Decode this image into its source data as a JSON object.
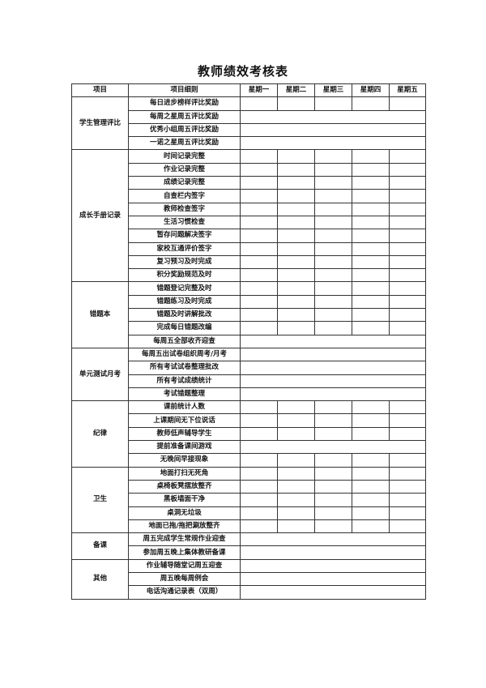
{
  "title": "教师绩效考核表",
  "headers": [
    "项目",
    "项目细则",
    "星期一",
    "星期二",
    "星期三",
    "星期四",
    "星期五"
  ],
  "sections": [
    {
      "name": "学生管理评比",
      "items": [
        {
          "text": "每日进步榜样评比奖励",
          "daily": true
        },
        {
          "text": "每周之星周五评比奖励",
          "daily": false
        },
        {
          "text": "优秀小组周五评比奖励",
          "daily": false
        },
        {
          "text": "一诺之星周五评比奖励",
          "daily": false
        }
      ]
    },
    {
      "name": "成长手册记录",
      "items": [
        {
          "text": "时间记录完整",
          "daily": true
        },
        {
          "text": "作业记录完整",
          "daily": true
        },
        {
          "text": "成绩记录完整",
          "daily": true
        },
        {
          "text": "自查栏内签字",
          "daily": true
        },
        {
          "text": "教师检查签字",
          "daily": true
        },
        {
          "text": "生活习惯检查",
          "daily": true
        },
        {
          "text": "暂存问题解决签字",
          "daily": true
        },
        {
          "text": "家校互通评价签字",
          "daily": true
        },
        {
          "text": "复习预习及时完成",
          "daily": true
        },
        {
          "text": "积分奖励规范及时",
          "daily": true
        }
      ]
    },
    {
      "name": "错题本",
      "items": [
        {
          "text": "错题登记完整及时",
          "daily": true
        },
        {
          "text": "错题练习及时完成",
          "daily": true
        },
        {
          "text": "错题及时讲解批改",
          "daily": true
        },
        {
          "text": "完成每日错题改编",
          "daily": true
        },
        {
          "text": "每周五全部收齐迎查",
          "daily": false
        }
      ]
    },
    {
      "name": "单元测试月考",
      "items": [
        {
          "text": "每周五出试卷组织周考/月考",
          "daily": false
        },
        {
          "text": "所有考试试卷整理批改",
          "daily": false
        },
        {
          "text": "所有考试成绩统计",
          "daily": false
        },
        {
          "text": "考试错题整理",
          "daily": false
        }
      ]
    },
    {
      "name": "纪律",
      "items": [
        {
          "text": "课前统计人数",
          "daily": true
        },
        {
          "text": "上课期间无下位说话",
          "daily": true
        },
        {
          "text": "教师低声辅导学生",
          "daily": true
        },
        {
          "text": "提前准备课间游戏",
          "daily": false
        },
        {
          "text": "无晚间早接现象",
          "daily": true
        }
      ]
    },
    {
      "name": "卫生",
      "items": [
        {
          "text": "地面打扫无死角",
          "daily": true
        },
        {
          "text": "桌椅板凳摆放整齐",
          "daily": true
        },
        {
          "text": "黑板墙面干净",
          "daily": true
        },
        {
          "text": "桌洞无垃圾",
          "daily": true
        },
        {
          "text": "地面已拖/拖把涮放整齐",
          "daily": true
        }
      ]
    },
    {
      "name": "备课",
      "items": [
        {
          "text": "周五完成学生常规作业迎查",
          "daily": false
        },
        {
          "text": "参加周五晚上集体教研备课",
          "daily": false
        }
      ]
    },
    {
      "name": "其他",
      "items": [
        {
          "text": "作业辅导随堂记周五迎查",
          "daily": false
        },
        {
          "text": "周五晚每周例会",
          "daily": false
        },
        {
          "text": "电话沟通记录表（双周）",
          "daily": false
        }
      ]
    }
  ]
}
